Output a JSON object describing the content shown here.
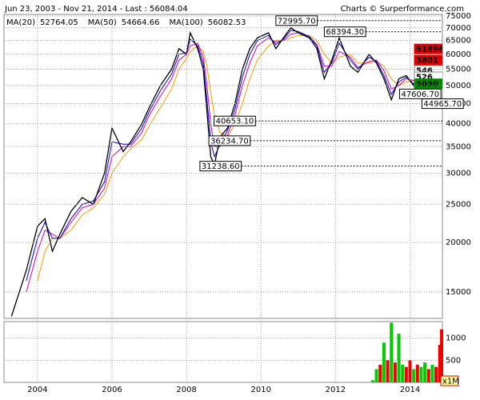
{
  "chart_data": {
    "type": "line",
    "title": "Jun 23, 2003 - Nov 21, 2014 - Last : 56084.04",
    "credit": "Charts © Surperformance.com",
    "ylog": true,
    "grid": true,
    "xlim": [
      2003.1,
      2014.87
    ],
    "xticks": [
      2004,
      2006,
      2008,
      2010,
      2012,
      2014
    ],
    "ylim": [
      12850,
      75700
    ],
    "yticks": [
      15000,
      20000,
      25000,
      30000,
      35000,
      40000,
      45000,
      50000,
      55000,
      60000,
      65000,
      70000,
      75000
    ],
    "x": [
      2003.3,
      2003.7,
      2004.0,
      2004.2,
      2004.4,
      2004.6,
      2004.9,
      2005.2,
      2005.5,
      2005.8,
      2006.0,
      2006.3,
      2006.5,
      2006.8,
      2007.0,
      2007.3,
      2007.6,
      2007.8,
      2008.0,
      2008.1,
      2008.3,
      2008.45,
      2008.55,
      2008.65,
      2008.75,
      2008.9,
      2009.1,
      2009.3,
      2009.5,
      2009.7,
      2009.9,
      2010.2,
      2010.4,
      2010.6,
      2010.8,
      2011.0,
      2011.3,
      2011.5,
      2011.7,
      2011.9,
      2012.1,
      2012.4,
      2012.6,
      2012.9,
      2013.1,
      2013.3,
      2013.5,
      2013.7,
      2013.9,
      2014.1,
      2014.4,
      2014.6,
      2014.85
    ],
    "series": [
      {
        "color": "#000000",
        "values": [
          13000,
          17000,
          22000,
          23000,
          19000,
          21000,
          24000,
          26000,
          25000,
          30000,
          39000,
          34000,
          36000,
          40000,
          44000,
          50000,
          55000,
          62000,
          60000,
          68000,
          62000,
          55000,
          43000,
          33000,
          31500,
          37000,
          39000,
          45000,
          55000,
          62000,
          66000,
          68000,
          62000,
          66000,
          70000,
          68000,
          66000,
          62000,
          52000,
          58000,
          66000,
          56000,
          54000,
          60000,
          57000,
          52000,
          46000,
          52000,
          53000,
          50000,
          54000,
          57000,
          56084.04
        ]
      },
      {
        "name": "MA(20)",
        "color": "#0000cc",
        "values": [
          null,
          16000,
          20500,
          22500,
          20500,
          20500,
          23000,
          25000,
          25500,
          28500,
          36000,
          35500,
          35500,
          39000,
          43000,
          48500,
          53500,
          60000,
          60500,
          65500,
          63000,
          57000,
          46000,
          36000,
          33000,
          35500,
          38500,
          43500,
          52500,
          60000,
          65000,
          67000,
          63500,
          65500,
          69000,
          68500,
          66500,
          63000,
          54000,
          57000,
          64000,
          58000,
          55000,
          59000,
          57500,
          53000,
          47500,
          51000,
          52500,
          50500,
          53500,
          56000,
          52764.05
        ]
      },
      {
        "name": "MA(50)",
        "color": "#cc00cc",
        "values": [
          null,
          15000,
          19000,
          21500,
          21000,
          20500,
          22500,
          24500,
          25000,
          27500,
          33000,
          35000,
          35000,
          38000,
          42000,
          47000,
          52000,
          58000,
          60000,
          63000,
          64000,
          59000,
          50000,
          40000,
          35000,
          35000,
          37500,
          42000,
          50000,
          57000,
          63000,
          66000,
          64500,
          65000,
          67500,
          68000,
          66500,
          63500,
          56000,
          56000,
          61000,
          59000,
          55500,
          57500,
          58000,
          54500,
          49000,
          50000,
          52000,
          51500,
          52500,
          55000,
          54664.66
        ]
      },
      {
        "name": "MA(100)",
        "color": "#ff9900",
        "values": [
          null,
          null,
          16000,
          19000,
          20500,
          20500,
          21500,
          23500,
          24500,
          26500,
          30000,
          33000,
          34500,
          36500,
          39500,
          44000,
          49000,
          55000,
          58500,
          61000,
          63000,
          61000,
          56000,
          48000,
          42000,
          38000,
          37000,
          40000,
          45000,
          52000,
          58000,
          63000,
          65000,
          65000,
          66000,
          67000,
          67000,
          65000,
          60000,
          57000,
          59000,
          60000,
          57000,
          57000,
          57500,
          56000,
          52000,
          50000,
          51000,
          51500,
          52000,
          54000,
          56082.53
        ]
      }
    ],
    "annotations": [
      {
        "label": "72995.70",
        "value": 72995.7,
        "x": 2010.4,
        "line": true
      },
      {
        "label": "68394.30",
        "value": 68394.3,
        "x": 2011.7,
        "line": true
      },
      {
        "label": "40653.10",
        "value": 40653.1,
        "x": 2008.74,
        "line": true
      },
      {
        "label": "36234.70",
        "value": 36234.7,
        "x": 2008.6,
        "line": true
      },
      {
        "label": "31238.60",
        "value": 31238.6,
        "x": 2008.36,
        "line": true
      },
      {
        "label": "47606.70",
        "value": 47606.7,
        "x": 2013.72,
        "line": false
      },
      {
        "label": "44965.70",
        "value": 44965.7,
        "x": 2014.32,
        "line": false
      }
    ],
    "price_tags": [
      {
        "label": "61896",
        "value": 61896,
        "color": "#e00000"
      },
      {
        "label": "5801",
        "value": 58010,
        "color": "#e00000"
      },
      {
        "label": "546",
        "value": 54600,
        "color": "#ffffff"
      },
      {
        "label": "526",
        "value": 52600,
        "color": "#ffffff"
      },
      {
        "label": "5050",
        "value": 50500,
        "color": "#008800"
      }
    ],
    "volume": {
      "unit": "x1M",
      "ylim": [
        0,
        1375
      ],
      "yticks": [
        500,
        1000
      ],
      "x": [
        2013.0,
        2013.1,
        2013.2,
        2013.3,
        2013.4,
        2013.5,
        2013.6,
        2013.7,
        2013.8,
        2013.9,
        2014.0,
        2014.1,
        2014.2,
        2014.3,
        2014.4,
        2014.5,
        2014.6,
        2014.7,
        2014.8,
        2014.85
      ],
      "values": [
        50,
        300,
        400,
        900,
        500,
        1350,
        450,
        1100,
        400,
        350,
        500,
        300,
        400,
        350,
        450,
        300,
        400,
        350,
        850,
        1200
      ],
      "colors": [
        "#00cc00",
        "#00cc00",
        "#ee0000",
        "#00cc00",
        "#ee0000",
        "#00cc00",
        "#ee0000",
        "#00cc00",
        "#00cc00",
        "#ee0000",
        "#ee0000",
        "#00cc00",
        "#ee0000",
        "#00cc00",
        "#00cc00",
        "#ee0000",
        "#00cc00",
        "#ee0000",
        "#ee0000",
        "#ee0000"
      ]
    }
  }
}
